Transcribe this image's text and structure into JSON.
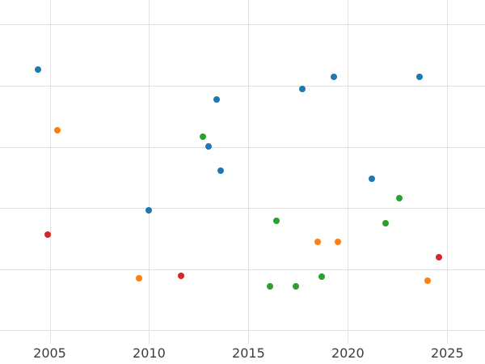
{
  "chart_data": {
    "type": "scatter",
    "title": "",
    "xlabel": "",
    "ylabel": "",
    "grid": true,
    "legend_position": "none",
    "xlim": [
      2002.5,
      2026.9
    ],
    "ylim": [
      -2.2,
      54
    ],
    "x_ticks": [
      2005,
      2010,
      2015,
      2020,
      2025
    ],
    "x_tick_labels": [
      "2005",
      "2010",
      "2015",
      "2020",
      "2025"
    ],
    "y_gridline_values": [
      0,
      10,
      20,
      30,
      40,
      50
    ],
    "marker_size_px": 8,
    "grid_color": "#e0e0e0",
    "tick_label_color": "#3c3c3c",
    "background_color": "#ffffff",
    "series": [
      {
        "name": "blue",
        "color": "#1f77b4",
        "points": [
          [
            2004.4,
            42.6
          ],
          [
            2010.0,
            19.6
          ],
          [
            2013.0,
            30.1
          ],
          [
            2013.4,
            37.7
          ],
          [
            2013.6,
            26.1
          ],
          [
            2017.7,
            39.5
          ],
          [
            2019.3,
            41.5
          ],
          [
            2021.2,
            24.8
          ],
          [
            2023.6,
            41.5
          ]
        ]
      },
      {
        "name": "orange",
        "color": "#ff7f0e",
        "points": [
          [
            2005.4,
            32.7
          ],
          [
            2009.5,
            8.5
          ],
          [
            2018.5,
            14.5
          ],
          [
            2019.5,
            14.5
          ],
          [
            2024.0,
            8.1
          ]
        ]
      },
      {
        "name": "green",
        "color": "#2ca02c",
        "points": [
          [
            2012.7,
            31.6
          ],
          [
            2016.1,
            7.2
          ],
          [
            2016.4,
            17.9
          ],
          [
            2017.4,
            7.2
          ],
          [
            2018.7,
            8.8
          ],
          [
            2021.9,
            17.5
          ],
          [
            2022.6,
            21.6
          ]
        ]
      },
      {
        "name": "red",
        "color": "#d62728",
        "points": [
          [
            2004.9,
            15.7
          ],
          [
            2011.6,
            8.9
          ],
          [
            2024.6,
            12.0
          ]
        ]
      }
    ]
  }
}
